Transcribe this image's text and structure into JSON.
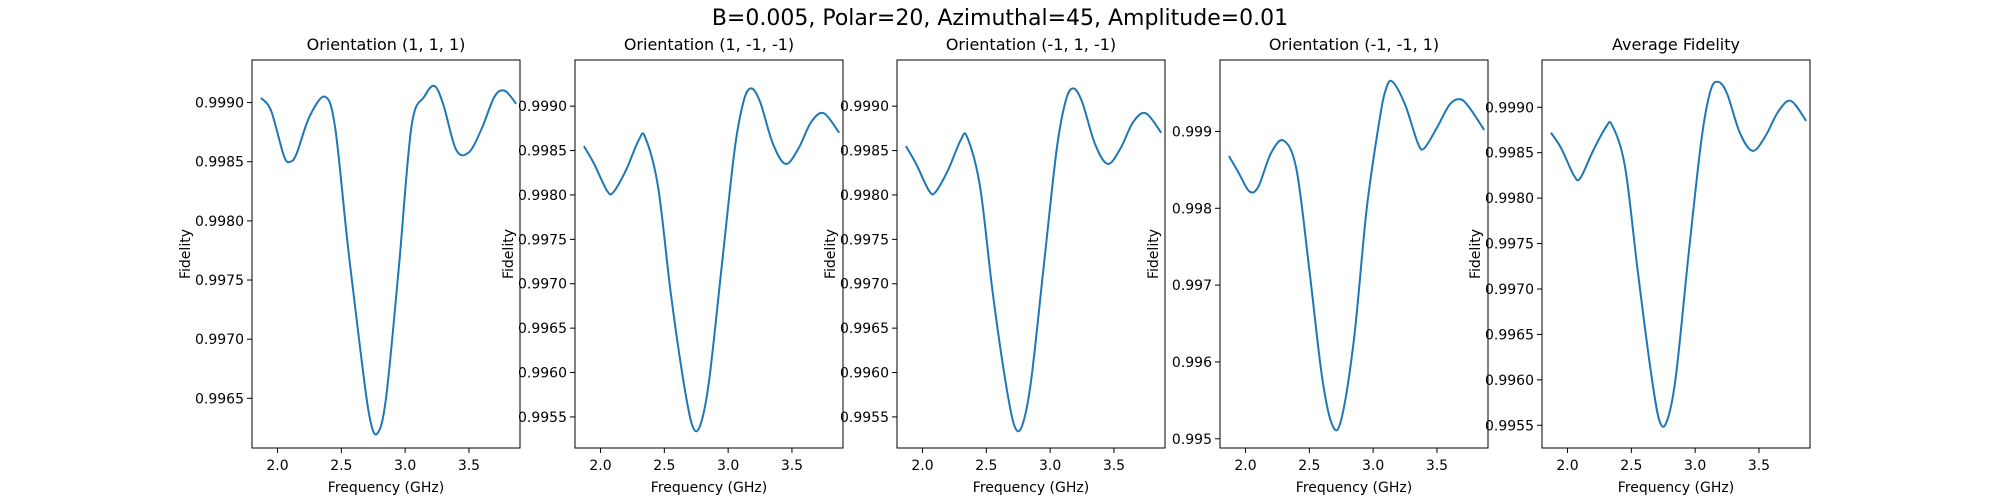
{
  "figure": {
    "suptitle": "B=0.005, Polar=20, Azimuthal=45, Amplitude=0.01",
    "line_color": "#1f77b4"
  },
  "chart_data": [
    {
      "type": "line",
      "title": "Orientation (1, 1, 1)",
      "xlabel": "Frequency (GHz)",
      "ylabel": "Fidelity",
      "xlim": [
        1.8,
        3.9
      ],
      "ylim": [
        0.99608,
        0.99936
      ],
      "xticks": [
        2.0,
        2.5,
        3.0,
        3.5
      ],
      "xtick_labels": [
        "2.0",
        "2.5",
        "3.0",
        "3.5"
      ],
      "yticks": [
        0.9965,
        0.997,
        0.9975,
        0.998,
        0.9985,
        0.999
      ],
      "ytick_labels": [
        "0.9965",
        "0.9970",
        "0.9975",
        "0.9980",
        "0.9985",
        "0.9990"
      ],
      "x": [
        1.87,
        1.95,
        2.05,
        2.1,
        2.15,
        2.25,
        2.37,
        2.45,
        2.55,
        2.65,
        2.72,
        2.78,
        2.85,
        2.95,
        3.05,
        3.15,
        3.23,
        3.3,
        3.4,
        3.5,
        3.6,
        3.7,
        3.78,
        3.87
      ],
      "series": [
        {
          "values": [
            0.99904,
            0.99893,
            0.99855,
            0.9985,
            0.99857,
            0.99888,
            0.99905,
            0.9988,
            0.9978,
            0.9969,
            0.99635,
            0.9962,
            0.9965,
            0.9976,
            0.9988,
            0.99905,
            0.99914,
            0.99898,
            0.9986,
            0.99858,
            0.99878,
            0.99905,
            0.9991,
            0.99899
          ]
        }
      ]
    },
    {
      "type": "line",
      "title": "Orientation (1, -1, -1)",
      "xlabel": "Frequency (GHz)",
      "ylabel": "Fidelity",
      "xlim": [
        1.8,
        3.9
      ],
      "ylim": [
        0.99515,
        0.99952
      ],
      "xticks": [
        2.0,
        2.5,
        3.0,
        3.5
      ],
      "xtick_labels": [
        "2.0",
        "2.5",
        "3.0",
        "3.5"
      ],
      "yticks": [
        0.9955,
        0.996,
        0.9965,
        0.997,
        0.9975,
        0.998,
        0.9985,
        0.999
      ],
      "ytick_labels": [
        "0.9955",
        "0.9960",
        "0.9965",
        "0.9970",
        "0.9975",
        "0.9980",
        "0.9985",
        "0.9990"
      ],
      "x": [
        1.87,
        1.95,
        2.05,
        2.1,
        2.2,
        2.3,
        2.35,
        2.45,
        2.55,
        2.65,
        2.72,
        2.78,
        2.85,
        2.95,
        3.05,
        3.12,
        3.18,
        3.25,
        3.35,
        3.45,
        3.55,
        3.65,
        3.75,
        3.87
      ],
      "series": [
        {
          "values": [
            0.99855,
            0.99835,
            0.99805,
            0.99803,
            0.99828,
            0.99862,
            0.99865,
            0.9981,
            0.9969,
            0.9959,
            0.9954,
            0.9954,
            0.9959,
            0.9972,
            0.9985,
            0.99905,
            0.9992,
            0.99905,
            0.99858,
            0.99835,
            0.99852,
            0.99882,
            0.99892,
            0.9987
          ]
        }
      ]
    },
    {
      "type": "line",
      "title": "Orientation (-1, 1, -1)",
      "xlabel": "Frequency (GHz)",
      "ylabel": "Fidelity",
      "xlim": [
        1.8,
        3.9
      ],
      "ylim": [
        0.99515,
        0.99952
      ],
      "xticks": [
        2.0,
        2.5,
        3.0,
        3.5
      ],
      "xtick_labels": [
        "2.0",
        "2.5",
        "3.0",
        "3.5"
      ],
      "yticks": [
        0.9955,
        0.996,
        0.9965,
        0.997,
        0.9975,
        0.998,
        0.9985,
        0.999
      ],
      "ytick_labels": [
        "0.9955",
        "0.9960",
        "0.9965",
        "0.9970",
        "0.9975",
        "0.9980",
        "0.9985",
        "0.9990"
      ],
      "x": [
        1.87,
        1.95,
        2.05,
        2.1,
        2.2,
        2.3,
        2.35,
        2.45,
        2.55,
        2.65,
        2.72,
        2.78,
        2.85,
        2.95,
        3.05,
        3.12,
        3.18,
        3.25,
        3.35,
        3.45,
        3.55,
        3.65,
        3.75,
        3.87
      ],
      "series": [
        {
          "values": [
            0.99855,
            0.99835,
            0.99805,
            0.99803,
            0.99828,
            0.99862,
            0.99865,
            0.9981,
            0.9969,
            0.9959,
            0.9954,
            0.9954,
            0.9959,
            0.9972,
            0.9985,
            0.99905,
            0.9992,
            0.99905,
            0.99858,
            0.99835,
            0.99852,
            0.99882,
            0.99892,
            0.9987
          ]
        }
      ]
    },
    {
      "type": "line",
      "title": "Orientation (-1, -1, 1)",
      "xlabel": "Frequency (GHz)",
      "ylabel": "Fidelity",
      "xlim": [
        1.8,
        3.9
      ],
      "ylim": [
        0.99488,
        0.99993
      ],
      "xticks": [
        2.0,
        2.5,
        3.0,
        3.5
      ],
      "xtick_labels": [
        "2.0",
        "2.5",
        "3.0",
        "3.5"
      ],
      "yticks": [
        0.995,
        0.996,
        0.997,
        0.998,
        0.999
      ],
      "ytick_labels": [
        "0.995",
        "0.996",
        "0.997",
        "0.998",
        "0.999"
      ],
      "x": [
        1.87,
        1.95,
        2.03,
        2.1,
        2.2,
        2.3,
        2.4,
        2.5,
        2.6,
        2.68,
        2.75,
        2.85,
        2.95,
        3.05,
        3.1,
        3.15,
        3.25,
        3.35,
        3.4,
        3.5,
        3.6,
        3.68,
        3.75,
        3.87
      ],
      "series": [
        {
          "values": [
            0.99868,
            0.99845,
            0.99822,
            0.99828,
            0.99872,
            0.99888,
            0.9985,
            0.9972,
            0.9958,
            0.99518,
            0.99525,
            0.9963,
            0.998,
            0.99915,
            0.99955,
            0.99965,
            0.99935,
            0.99885,
            0.99878,
            0.99905,
            0.99935,
            0.99942,
            0.99932,
            0.99902
          ]
        }
      ]
    },
    {
      "type": "line",
      "title": "Average Fidelity",
      "xlabel": "Frequency (GHz)",
      "ylabel": "Fidelity",
      "xlim": [
        1.8,
        3.9
      ],
      "ylim": [
        0.99525,
        0.99952
      ],
      "xticks": [
        2.0,
        2.5,
        3.0,
        3.5
      ],
      "xtick_labels": [
        "2.0",
        "2.5",
        "3.0",
        "3.5"
      ],
      "yticks": [
        0.9955,
        0.996,
        0.9965,
        0.997,
        0.9975,
        0.998,
        0.9985,
        0.999
      ],
      "ytick_labels": [
        "0.9955",
        "0.9960",
        "0.9965",
        "0.9970",
        "0.9975",
        "0.9980",
        "0.9985",
        "0.9990"
      ],
      "x": [
        1.87,
        1.95,
        2.05,
        2.1,
        2.2,
        2.3,
        2.35,
        2.45,
        2.55,
        2.65,
        2.72,
        2.78,
        2.85,
        2.95,
        3.05,
        3.12,
        3.18,
        3.25,
        3.35,
        3.45,
        3.55,
        3.65,
        3.75,
        3.87
      ],
      "series": [
        {
          "values": [
            0.99872,
            0.99855,
            0.99825,
            0.99822,
            0.99852,
            0.99878,
            0.9988,
            0.99835,
            0.9972,
            0.99612,
            0.99555,
            0.99555,
            0.99605,
            0.9974,
            0.99865,
            0.99918,
            0.99928,
            0.99915,
            0.99872,
            0.99852,
            0.99868,
            0.99895,
            0.99907,
            0.99885
          ]
        }
      ]
    }
  ]
}
